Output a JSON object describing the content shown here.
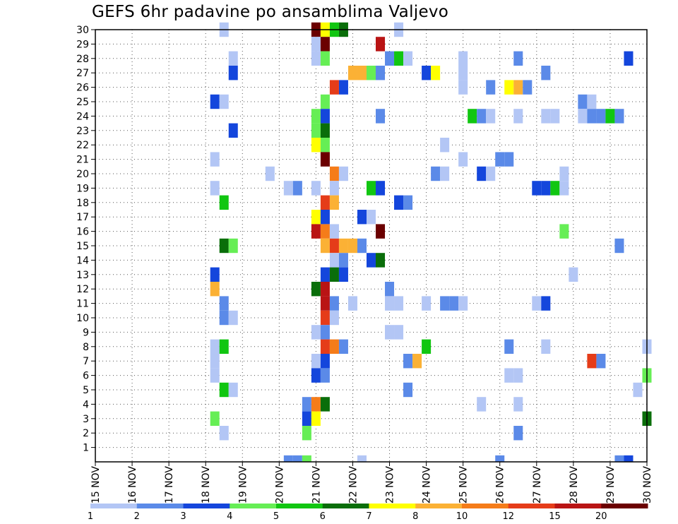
{
  "chart_data": {
    "type": "heatmap",
    "title": "GEFS 6hr padavine po ansamblima Valjevo",
    "xlabel": "",
    "ylabel": "",
    "x_ticks": [
      "15 NOV",
      "16 NOV",
      "17 NOV",
      "18 NOV",
      "19 NOV",
      "20 NOV",
      "21 NOV",
      "22 NOV",
      "23 NOV",
      "24 NOV",
      "25 NOV",
      "26 NOV",
      "27 NOV",
      "28 NOV",
      "29 NOV",
      "30 NOV"
    ],
    "xlim": [
      "15 NOV",
      "30 NOV"
    ],
    "y_ticks": [
      1,
      2,
      3,
      4,
      5,
      6,
      7,
      8,
      9,
      10,
      11,
      12,
      13,
      14,
      15,
      16,
      17,
      18,
      19,
      20,
      21,
      22,
      23,
      24,
      25,
      26,
      27,
      28,
      29,
      30
    ],
    "ylim": [
      0,
      30
    ],
    "colorbar": {
      "labels": [
        "1",
        "2",
        "3",
        "4",
        "5",
        "6",
        "7",
        "8",
        "10",
        "12",
        "15",
        "20"
      ],
      "colors": [
        "#b3c6f5",
        "#5b8ae8",
        "#1446dc",
        "#66ee55",
        "#11c611",
        "#0a6e0a",
        "#ffff00",
        "#fbb135",
        "#f57c19",
        "#e53c19",
        "#b91414",
        "#6b0000"
      ]
    },
    "cells": [
      [
        30,
        18.5,
        0
      ],
      [
        30,
        21.0,
        11
      ],
      [
        30,
        21.25,
        6
      ],
      [
        30,
        21.5,
        4
      ],
      [
        30,
        21.75,
        5
      ],
      [
        30,
        23.25,
        0
      ],
      [
        29,
        21.0,
        0
      ],
      [
        29,
        21.25,
        11
      ],
      [
        29,
        22.75,
        10
      ],
      [
        28,
        18.75,
        0
      ],
      [
        28,
        21.0,
        0
      ],
      [
        28,
        21.25,
        3
      ],
      [
        28,
        23.0,
        1
      ],
      [
        28,
        23.25,
        4
      ],
      [
        28,
        23.5,
        0
      ],
      [
        28,
        25.0,
        0
      ],
      [
        28,
        26.5,
        1
      ],
      [
        28,
        29.5,
        2
      ],
      [
        27,
        18.75,
        2
      ],
      [
        27,
        22.0,
        7
      ],
      [
        27,
        22.25,
        7
      ],
      [
        27,
        22.5,
        3
      ],
      [
        27,
        22.75,
        1
      ],
      [
        27,
        24.0,
        2
      ],
      [
        27,
        24.25,
        6
      ],
      [
        27,
        25.0,
        0
      ],
      [
        27,
        27.25,
        1
      ],
      [
        26,
        21.5,
        9
      ],
      [
        26,
        21.75,
        2
      ],
      [
        26,
        25.0,
        0
      ],
      [
        26,
        25.75,
        1
      ],
      [
        26,
        26.25,
        6
      ],
      [
        26,
        26.5,
        7
      ],
      [
        26,
        26.75,
        1
      ],
      [
        25,
        18.25,
        2
      ],
      [
        25,
        18.5,
        0
      ],
      [
        25,
        21.25,
        3
      ],
      [
        25,
        28.25,
        1
      ],
      [
        25,
        28.5,
        0
      ],
      [
        24,
        21.0,
        3
      ],
      [
        24,
        21.25,
        2
      ],
      [
        24,
        22.75,
        1
      ],
      [
        24,
        25.25,
        4
      ],
      [
        24,
        25.5,
        1
      ],
      [
        24,
        25.75,
        0
      ],
      [
        24,
        26.5,
        0
      ],
      [
        24,
        27.25,
        0
      ],
      [
        24,
        27.5,
        0
      ],
      [
        24,
        28.25,
        0
      ],
      [
        24,
        28.5,
        1
      ],
      [
        24,
        28.75,
        1
      ],
      [
        24,
        29.0,
        4
      ],
      [
        24,
        29.25,
        1
      ],
      [
        23,
        18.75,
        2
      ],
      [
        23,
        21.0,
        3
      ],
      [
        23,
        21.25,
        5
      ],
      [
        22,
        21.0,
        6
      ],
      [
        22,
        21.25,
        3
      ],
      [
        22,
        24.5,
        0
      ],
      [
        21,
        18.25,
        0
      ],
      [
        21,
        21.25,
        11
      ],
      [
        21,
        25.0,
        0
      ],
      [
        21,
        26.0,
        1
      ],
      [
        21,
        26.25,
        1
      ],
      [
        20,
        19.75,
        0
      ],
      [
        20,
        21.5,
        8
      ],
      [
        20,
        21.75,
        0
      ],
      [
        20,
        24.25,
        1
      ],
      [
        20,
        24.5,
        0
      ],
      [
        20,
        25.5,
        2
      ],
      [
        20,
        25.75,
        0
      ],
      [
        20,
        27.75,
        0
      ],
      [
        19,
        18.25,
        0
      ],
      [
        19,
        20.25,
        0
      ],
      [
        19,
        20.5,
        1
      ],
      [
        19,
        21.0,
        0
      ],
      [
        19,
        21.5,
        0
      ],
      [
        19,
        22.5,
        4
      ],
      [
        19,
        22.75,
        2
      ],
      [
        19,
        27.0,
        2
      ],
      [
        19,
        27.25,
        2
      ],
      [
        19,
        27.5,
        4
      ],
      [
        19,
        27.75,
        0
      ],
      [
        18,
        18.5,
        4
      ],
      [
        18,
        21.25,
        9
      ],
      [
        18,
        21.5,
        7
      ],
      [
        18,
        23.25,
        2
      ],
      [
        18,
        23.5,
        1
      ],
      [
        17,
        21.0,
        6
      ],
      [
        17,
        21.25,
        2
      ],
      [
        17,
        22.25,
        2
      ],
      [
        17,
        22.5,
        0
      ],
      [
        16,
        21.0,
        10
      ],
      [
        16,
        21.25,
        8
      ],
      [
        16,
        21.5,
        0
      ],
      [
        16,
        22.75,
        11
      ],
      [
        16,
        27.75,
        3
      ],
      [
        15,
        18.5,
        5
      ],
      [
        15,
        18.75,
        3
      ],
      [
        15,
        21.25,
        7
      ],
      [
        15,
        21.5,
        9
      ],
      [
        15,
        21.75,
        7
      ],
      [
        15,
        22.0,
        7
      ],
      [
        15,
        22.25,
        1
      ],
      [
        15,
        29.25,
        1
      ],
      [
        14,
        21.5,
        0
      ],
      [
        14,
        21.75,
        1
      ],
      [
        14,
        22.5,
        2
      ],
      [
        14,
        22.75,
        5
      ],
      [
        13,
        18.25,
        2
      ],
      [
        13,
        21.25,
        2
      ],
      [
        13,
        21.5,
        5
      ],
      [
        13,
        21.75,
        2
      ],
      [
        13,
        28.0,
        0
      ],
      [
        12,
        18.25,
        7
      ],
      [
        12,
        21.0,
        5
      ],
      [
        12,
        21.25,
        10
      ],
      [
        12,
        23.0,
        1
      ],
      [
        11,
        18.5,
        1
      ],
      [
        11,
        21.25,
        10
      ],
      [
        11,
        21.5,
        1
      ],
      [
        11,
        22.0,
        0
      ],
      [
        11,
        23.0,
        0
      ],
      [
        11,
        23.25,
        0
      ],
      [
        11,
        24.0,
        0
      ],
      [
        11,
        24.5,
        1
      ],
      [
        11,
        24.75,
        1
      ],
      [
        11,
        25.0,
        0
      ],
      [
        11,
        27.0,
        0
      ],
      [
        11,
        27.25,
        2
      ],
      [
        10,
        18.5,
        1
      ],
      [
        10,
        18.75,
        0
      ],
      [
        10,
        21.25,
        9
      ],
      [
        10,
        21.5,
        0
      ],
      [
        9,
        21.0,
        0
      ],
      [
        9,
        21.25,
        1
      ],
      [
        9,
        23.0,
        0
      ],
      [
        9,
        23.25,
        0
      ],
      [
        8,
        18.25,
        0
      ],
      [
        8,
        18.5,
        4
      ],
      [
        8,
        21.25,
        9
      ],
      [
        8,
        21.5,
        8
      ],
      [
        8,
        21.75,
        1
      ],
      [
        8,
        24.0,
        4
      ],
      [
        8,
        26.25,
        1
      ],
      [
        8,
        27.25,
        0
      ],
      [
        8,
        30.0,
        0
      ],
      [
        7,
        18.25,
        0
      ],
      [
        7,
        21.0,
        0
      ],
      [
        7,
        21.25,
        2
      ],
      [
        7,
        23.5,
        1
      ],
      [
        7,
        23.75,
        7
      ],
      [
        7,
        28.5,
        9
      ],
      [
        7,
        28.75,
        1
      ],
      [
        6,
        18.25,
        0
      ],
      [
        6,
        21.0,
        2
      ],
      [
        6,
        21.25,
        1
      ],
      [
        6,
        26.25,
        0
      ],
      [
        6,
        26.5,
        0
      ],
      [
        6,
        30.0,
        3
      ],
      [
        5,
        18.5,
        4
      ],
      [
        5,
        18.75,
        0
      ],
      [
        5,
        23.5,
        1
      ],
      [
        5,
        29.75,
        0
      ],
      [
        4,
        20.75,
        1
      ],
      [
        4,
        21.0,
        8
      ],
      [
        4,
        21.25,
        5
      ],
      [
        4,
        25.5,
        0
      ],
      [
        4,
        26.5,
        0
      ],
      [
        3,
        18.25,
        3
      ],
      [
        3,
        20.75,
        2
      ],
      [
        3,
        21.0,
        6
      ],
      [
        3,
        30.0,
        5
      ],
      [
        2,
        18.5,
        0
      ],
      [
        2,
        20.75,
        3
      ],
      [
        2,
        26.5,
        1
      ]
    ],
    "low_strip": [
      [
        20.25,
        1
      ],
      [
        20.5,
        1
      ],
      [
        20.75,
        3
      ],
      [
        22.25,
        0
      ],
      [
        26.0,
        1
      ],
      [
        29.25,
        1
      ],
      [
        29.5,
        2
      ]
    ]
  }
}
